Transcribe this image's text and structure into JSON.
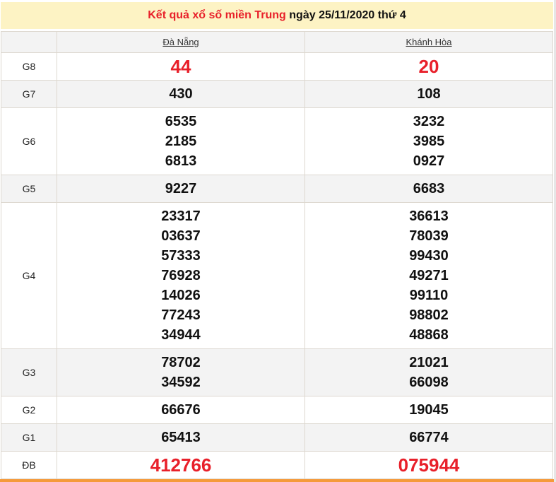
{
  "title": {
    "red": "Kết quả xổ số miền Trung",
    "rest": " ngày 25/11/2020 thứ 4"
  },
  "provinces": [
    "Đà Nẵng",
    "Khánh Hòa"
  ],
  "colors": {
    "accent": "#e8202a",
    "header_bg": "#fdf3c4",
    "bottom_bar": "#f59a3a"
  },
  "rows": [
    {
      "label": "G8",
      "big": true,
      "values": [
        [
          "44"
        ],
        [
          "20"
        ]
      ]
    },
    {
      "label": "G7",
      "values": [
        [
          "430"
        ],
        [
          "108"
        ]
      ]
    },
    {
      "label": "G6",
      "values": [
        [
          "6535",
          "2185",
          "6813"
        ],
        [
          "3232",
          "3985",
          "0927"
        ]
      ]
    },
    {
      "label": "G5",
      "values": [
        [
          "9227"
        ],
        [
          "6683"
        ]
      ]
    },
    {
      "label": "G4",
      "values": [
        [
          "23317",
          "03637",
          "57333",
          "76928",
          "14026",
          "77243",
          "34944"
        ],
        [
          "36613",
          "78039",
          "99430",
          "49271",
          "99110",
          "98802",
          "48868"
        ]
      ]
    },
    {
      "label": "G3",
      "values": [
        [
          "78702",
          "34592"
        ],
        [
          "21021",
          "66098"
        ]
      ]
    },
    {
      "label": "G2",
      "values": [
        [
          "66676"
        ],
        [
          "19045"
        ]
      ]
    },
    {
      "label": "G1",
      "values": [
        [
          "65413"
        ],
        [
          "66774"
        ]
      ]
    },
    {
      "label": "ĐB",
      "big": true,
      "values": [
        [
          "412766"
        ],
        [
          "075944"
        ]
      ]
    }
  ]
}
